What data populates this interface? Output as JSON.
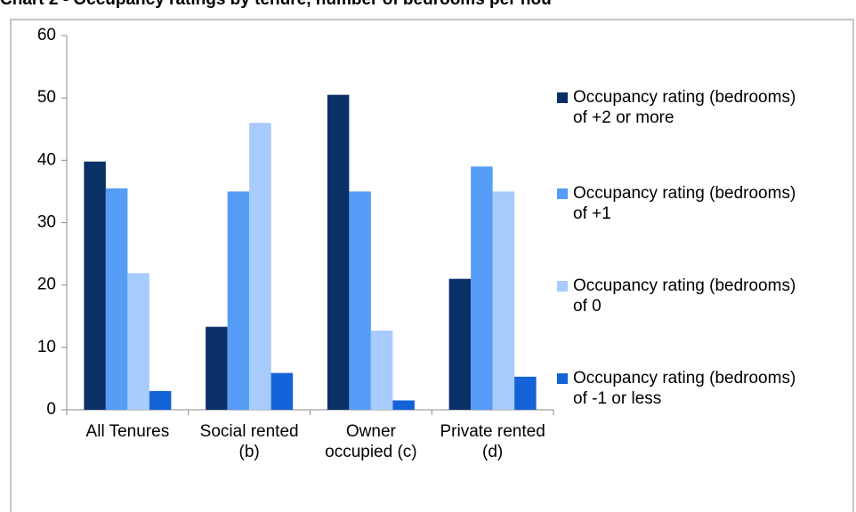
{
  "chart_data": {
    "type": "bar",
    "title": "Chart 2 - Occupancy ratings by tenure, number of bedrooms per hou",
    "categories": [
      "All Tenures",
      "Social rented (b)",
      "Owner occupied (c)",
      "Private rented (d)"
    ],
    "series": [
      {
        "name": "Occupancy rating (bedrooms) of +2 or more",
        "color": "#0b3068",
        "values": [
          39.8,
          13.3,
          50.5,
          21.0
        ]
      },
      {
        "name": "Occupancy rating (bedrooms) of +1",
        "color": "#559cf7",
        "values": [
          35.5,
          35.0,
          35.0,
          39.0
        ]
      },
      {
        "name": "Occupancy rating (bedrooms) of 0",
        "color": "#a7cbfd",
        "values": [
          21.9,
          46.0,
          12.7,
          35.0
        ]
      },
      {
        "name": "Occupancy rating (bedrooms) of -1 or less",
        "color": "#1462d8",
        "values": [
          3.0,
          5.9,
          1.5,
          5.3
        ]
      }
    ],
    "ylim": [
      0,
      60
    ],
    "yticks": [
      0,
      10,
      20,
      30,
      40,
      50,
      60
    ],
    "grid": false,
    "legend": "right"
  }
}
